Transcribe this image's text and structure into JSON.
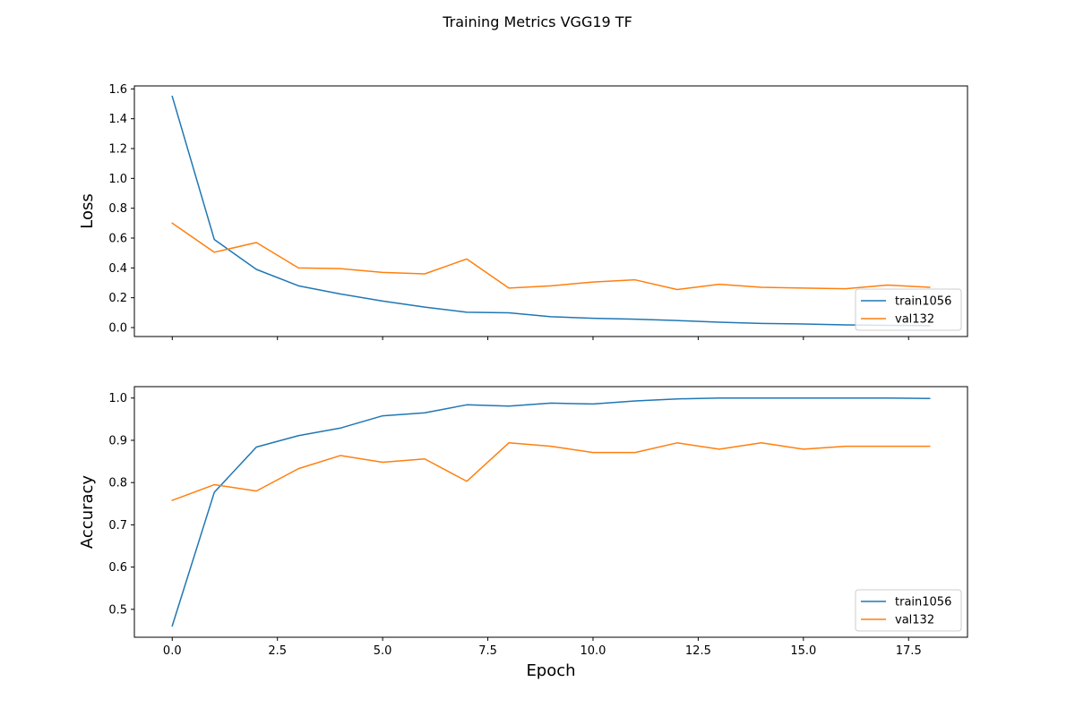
{
  "figure": {
    "title": "Training Metrics VGG19 TF"
  },
  "colors": {
    "train": "#1f77b4",
    "val": "#ff7f0e",
    "axes": "#000000",
    "legend_border": "#cccccc",
    "background": "#ffffff"
  },
  "chart_data": [
    {
      "type": "line",
      "title": "",
      "xlabel": "",
      "ylabel": "Loss",
      "x": [
        0,
        1,
        2,
        3,
        4,
        5,
        6,
        7,
        8,
        9,
        10,
        11,
        12,
        13,
        14,
        15,
        16,
        17,
        18
      ],
      "xlim": [
        -0.9,
        18.9
      ],
      "ylim": [
        -0.06,
        1.62
      ],
      "xticks": [
        0.0,
        2.5,
        5.0,
        7.5,
        10.0,
        12.5,
        15.0,
        17.5
      ],
      "xtick_labels_visible": false,
      "yticks": [
        0.0,
        0.2,
        0.4,
        0.6,
        0.8,
        1.0,
        1.2,
        1.4,
        1.6
      ],
      "ytick_labels": [
        "0.0",
        "0.2",
        "0.4",
        "0.6",
        "0.8",
        "1.0",
        "1.2",
        "1.4",
        "1.6"
      ],
      "grid": false,
      "legend_position": "lower-right",
      "series": [
        {
          "name": "train1056",
          "color": "#1f77b4",
          "values": [
            1.55,
            0.59,
            0.39,
            0.28,
            0.225,
            0.178,
            0.137,
            0.103,
            0.099,
            0.073,
            0.062,
            0.056,
            0.047,
            0.036,
            0.028,
            0.024,
            0.018,
            0.015,
            0.013
          ]
        },
        {
          "name": "val132",
          "color": "#ff7f0e",
          "values": [
            0.7,
            0.505,
            0.57,
            0.4,
            0.395,
            0.37,
            0.36,
            0.46,
            0.265,
            0.28,
            0.305,
            0.32,
            0.255,
            0.29,
            0.27,
            0.265,
            0.26,
            0.285,
            0.27
          ]
        }
      ]
    },
    {
      "type": "line",
      "title": "",
      "xlabel": "Epoch",
      "ylabel": "Accuracy",
      "x": [
        0,
        1,
        2,
        3,
        4,
        5,
        6,
        7,
        8,
        9,
        10,
        11,
        12,
        13,
        14,
        15,
        16,
        17,
        18
      ],
      "xlim": [
        -0.9,
        18.9
      ],
      "ylim": [
        0.434,
        1.027
      ],
      "xticks": [
        0.0,
        2.5,
        5.0,
        7.5,
        10.0,
        12.5,
        15.0,
        17.5
      ],
      "xtick_labels": [
        "0.0",
        "2.5",
        "5.0",
        "7.5",
        "10.0",
        "12.5",
        "15.0",
        "17.5"
      ],
      "yticks": [
        0.5,
        0.6,
        0.7,
        0.8,
        0.9,
        1.0
      ],
      "ytick_labels": [
        "0.5",
        "0.6",
        "0.7",
        "0.8",
        "0.9",
        "1.0"
      ],
      "grid": false,
      "legend_position": "lower-right",
      "series": [
        {
          "name": "train1056",
          "color": "#1f77b4",
          "values": [
            0.461,
            0.777,
            0.884,
            0.911,
            0.929,
            0.958,
            0.965,
            0.984,
            0.981,
            0.988,
            0.986,
            0.993,
            0.998,
            1.0,
            1.0,
            1.0,
            1.0,
            1.0,
            0.999
          ]
        },
        {
          "name": "val132",
          "color": "#ff7f0e",
          "values": [
            0.758,
            0.795,
            0.78,
            0.833,
            0.864,
            0.848,
            0.856,
            0.803,
            0.894,
            0.886,
            0.871,
            0.871,
            0.894,
            0.879,
            0.894,
            0.879,
            0.886,
            0.886,
            0.886
          ]
        }
      ]
    }
  ]
}
